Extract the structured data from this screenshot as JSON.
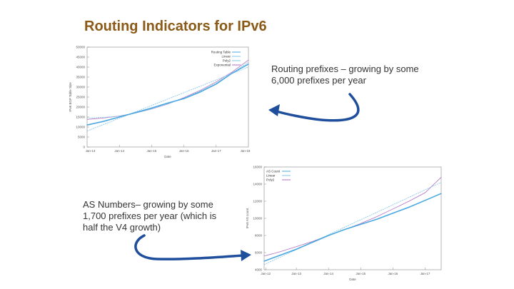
{
  "slide": {
    "title": "Routing Indicators for IPv6",
    "note_prefixes": "Routing prefixes – growing by some 6,000 prefixes per year",
    "note_as": "AS Numbers– growing by some 1,700 prefixes per year (which is half the V4 growth)",
    "arrow_color": "#1f4e9c",
    "title_color": "#8a5a16"
  },
  "chart_data": [
    {
      "type": "line",
      "title": "",
      "xlabel": "Date",
      "ylabel": "IPv6 BGP Table Size",
      "x_ticks": [
        "Jan-14",
        "Jan-15",
        "Jan-16",
        "Jan-17"
      ],
      "extra_x_ticks": [
        "Jan-13",
        "Jan-18"
      ],
      "y_ticks": [
        0,
        5000,
        10000,
        15000,
        20000,
        25000,
        30000,
        35000,
        40000,
        45000,
        50000
      ],
      "xlim": [
        2013,
        2018
      ],
      "ylim": [
        0,
        50000
      ],
      "legend": [
        "Routing Table",
        "Linear",
        "Poly2",
        "Exponential"
      ],
      "series": [
        {
          "name": "Routing Table",
          "color": "#4aa8e0",
          "x": [
            2013.0,
            2013.5,
            2014.0,
            2014.5,
            2015.0,
            2015.5,
            2016.0,
            2016.5,
            2017.0,
            2017.5,
            2018.0
          ],
          "y": [
            11000,
            12800,
            15000,
            17200,
            19500,
            22000,
            24200,
            27500,
            31500,
            37000,
            41500
          ]
        },
        {
          "name": "Linear",
          "color": "#7fc4e8",
          "x": [
            2013.0,
            2018.0
          ],
          "y": [
            8000,
            40000
          ]
        },
        {
          "name": "Poly2",
          "color": "#7fc4e8",
          "x": [
            2013.0,
            2013.5,
            2014.0,
            2014.5,
            2015.0,
            2015.5,
            2016.0,
            2016.5,
            2017.0,
            2017.5,
            2018.0
          ],
          "y": [
            14500,
            14800,
            15500,
            17000,
            19000,
            21500,
            24500,
            28000,
            32000,
            37000,
            42500
          ]
        },
        {
          "name": "Exponential",
          "color": "#b06fc0",
          "x": [
            2013.0,
            2013.5,
            2014.0,
            2014.5,
            2015.0,
            2015.5,
            2016.0,
            2016.5,
            2017.0,
            2017.5,
            2018.0
          ],
          "y": [
            13800,
            14500,
            15500,
            17000,
            19000,
            21500,
            24700,
            28300,
            32600,
            37600,
            43500
          ]
        }
      ]
    },
    {
      "type": "line",
      "title": "",
      "xlabel": "Date",
      "ylabel": "IPv6 AS count",
      "x_ticks": [
        "Jan-12",
        "Jan-13",
        "Jan-14",
        "Jan-15",
        "Jan-16",
        "Jan-17"
      ],
      "y_ticks": [
        4000,
        6000,
        8000,
        10000,
        12000,
        14000,
        16000
      ],
      "xlim": [
        2012,
        2017.5
      ],
      "ylim": [
        4000,
        16000
      ],
      "legend": [
        "AS Count",
        "Linear",
        "Poly2"
      ],
      "series": [
        {
          "name": "AS Count",
          "color": "#4aa8e0",
          "x": [
            2012.0,
            2012.5,
            2013.0,
            2013.5,
            2014.0,
            2014.5,
            2015.0,
            2015.5,
            2016.0,
            2016.5,
            2017.0,
            2017.5
          ],
          "y": [
            5000,
            5700,
            6400,
            7200,
            8000,
            8700,
            9300,
            9900,
            10600,
            11300,
            12100,
            12900
          ]
        },
        {
          "name": "Linear",
          "color": "#7fc4e8",
          "x": [
            2012.0,
            2017.5
          ],
          "y": [
            4600,
            14200
          ]
        },
        {
          "name": "Poly2",
          "color": "#b06fc0",
          "x": [
            2012.0,
            2012.5,
            2013.0,
            2013.5,
            2014.0,
            2014.5,
            2015.0,
            2015.5,
            2016.0,
            2016.5,
            2017.0,
            2017.5
          ],
          "y": [
            5600,
            6100,
            6700,
            7300,
            8000,
            8700,
            9400,
            10200,
            11100,
            12000,
            13000,
            14800
          ]
        }
      ]
    }
  ]
}
